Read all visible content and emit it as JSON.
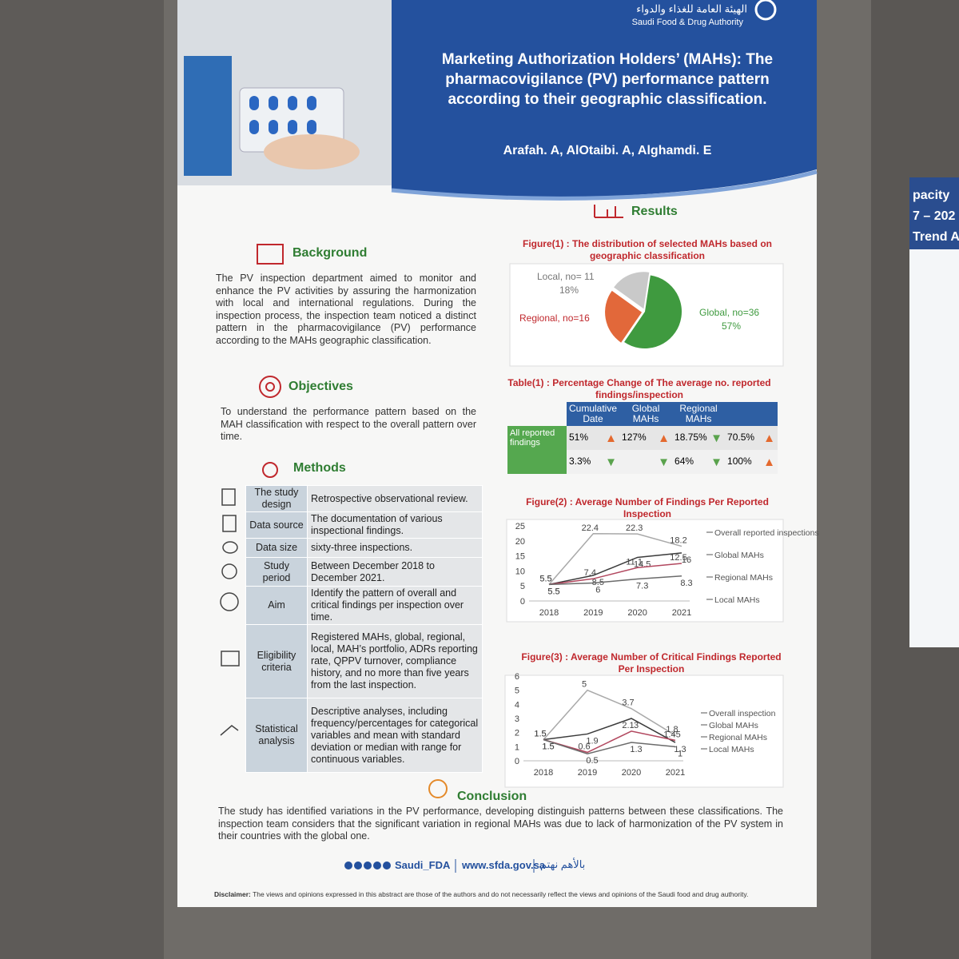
{
  "header": {
    "org_ar": "الهيئة العامة للغذاء والدواء",
    "org_en": "Saudi Food & Drug Authority",
    "title": "Marketing Authorization Holders’ (MAHs): The pharmacovigilance (PV) performance pattern according to their geographic classification.",
    "authors": "Arafah. A, AlOtaibi. A, Alghamdi. E"
  },
  "background": {
    "heading": "Background",
    "text": "The PV inspection department aimed to monitor and enhance the PV activities by assuring the harmonization with local and international regulations. During the inspection process, the inspection team noticed a distinct pattern in the pharmacovigilance (PV) performance according to the MAHs geographic classification."
  },
  "objectives": {
    "heading": "Objectives",
    "text": "To understand the performance pattern based on the MAH classification with respect to the overall pattern over time."
  },
  "methods": {
    "heading": "Methods",
    "rows": [
      {
        "label": "The study design",
        "text": "Retrospective observational review."
      },
      {
        "label": "Data source",
        "text": "The documentation of various inspectional findings."
      },
      {
        "label": "Data size",
        "text": "sixty-three inspections."
      },
      {
        "label": "Study period",
        "text": "Between December 2018 to December 2021."
      },
      {
        "label": "Aim",
        "text": "Identify the pattern of overall and critical findings per inspection over time."
      },
      {
        "label": "Eligibility criteria",
        "text": "Registered MAHs, global, regional, local, MAH’s portfolio, ADRs reporting rate, QPPV turnover, compliance history, and no more than five years from the last inspection."
      },
      {
        "label": "Statistical analysis",
        "text": "Descriptive analyses, including frequency/percentages for categorical variables and mean with standard deviation or median with range for continuous variables."
      }
    ]
  },
  "results": {
    "heading": "Results",
    "figure1": {
      "title": "Figure(1) : The distribution of selected MAHs based on geographic classification",
      "slices": [
        {
          "label": "Global, no=36",
          "value": 36,
          "percent": "57%",
          "color": "#3f9a3f"
        },
        {
          "label": "Regional, no=16",
          "value": 16,
          "percent": null,
          "color": "#e2683a"
        },
        {
          "label": "Local, no= 11",
          "value": 11,
          "percent": "18%",
          "color": "#c9c9c9"
        }
      ]
    },
    "table1": {
      "title": "Table(1) : Percentage Change of The average no. reported findings/inspection",
      "headers": [
        "Cumulative Date",
        "Global MAHs",
        "Regional MAHs"
      ],
      "rows": [
        {
          "label": "All reported findings",
          "cells": [
            {
              "text": "51%",
              "trend": "up"
            },
            {
              "text": "127%",
              "trend": "up"
            },
            {
              "text": "18.75%",
              "trend": "down"
            },
            {
              "text": "70.5%",
              "trend": "up"
            }
          ]
        },
        {
          "label": null,
          "cells": [
            {
              "text": "3.3%",
              "trend": "down"
            },
            {
              "text": null,
              "trend": "down"
            },
            {
              "text": "64%",
              "trend": "down"
            },
            {
              "text": "100%",
              "trend": "up"
            }
          ]
        }
      ]
    },
    "figure2": {
      "title": "Figure(2) : Average Number of Findings Per Reported Inspection",
      "x": [
        "2018",
        "2019",
        "2020",
        "2021"
      ],
      "ylim": [
        0,
        25
      ],
      "yticks": [
        0,
        5,
        10,
        15,
        20,
        25
      ],
      "series": [
        {
          "name": "Overall reported inspections",
          "color": "#a9a9a9",
          "values": [
            5.5,
            22.4,
            22.3,
            18.2
          ]
        },
        {
          "name": "Global MAHs",
          "color": "#3b3b3b",
          "values": [
            5.5,
            8.5,
            14.5,
            16
          ]
        },
        {
          "name": "Regional MAHs",
          "color": "#b2485f",
          "values": [
            5.5,
            7.4,
            11.1,
            12.5
          ]
        },
        {
          "name": "Local MAHs",
          "color": "#6b6b6b",
          "values": [
            5.5,
            6,
            7.3,
            8.3
          ]
        }
      ]
    },
    "figure3": {
      "title": "Figure(3) : Average Number of Critical Findings Reported Per Inspection",
      "x": [
        "2018",
        "2019",
        "2020",
        "2021"
      ],
      "ylim": [
        0,
        6
      ],
      "yticks": [
        0,
        1,
        2,
        3,
        4,
        5,
        6
      ],
      "series": [
        {
          "name": "Overall inspection",
          "color": "#a9a9a9",
          "values": [
            1.5,
            5,
            3.7,
            1.8
          ]
        },
        {
          "name": "Global MAHs",
          "color": "#3b3b3b",
          "values": [
            1.5,
            1.9,
            3,
            1.3
          ]
        },
        {
          "name": "Regional MAHs",
          "color": "#b2485f",
          "values": [
            1.5,
            0.6,
            2.1,
            1.45
          ]
        },
        {
          "name": "Local MAHs",
          "color": "#6b6b6b",
          "values": [
            1.5,
            0.5,
            1.3,
            1
          ]
        }
      ]
    }
  },
  "conclusion": {
    "heading": "Conclusion",
    "text": "The study has identified variations in the PV performance, developing distinguish patterns between these classifications. The inspection team considers that the significant variation in regional MAHs was due to lack of harmonization of the PV system in their countries with the global one."
  },
  "footer": {
    "social": "Saudi_FDA",
    "website": "www.sfda.gov.sa",
    "slogan": "بالأهم نهتم",
    "disclaimer_label": "Disclaimer:",
    "disclaimer": "The views and opinions expressed in this abstract are those of the authors and do not necessarily reflect the views and opinions of the Saudi food and drug authority."
  },
  "neighbor_poster": {
    "lines": [
      "pacity",
      "7 – 202",
      "Trend A"
    ]
  }
}
